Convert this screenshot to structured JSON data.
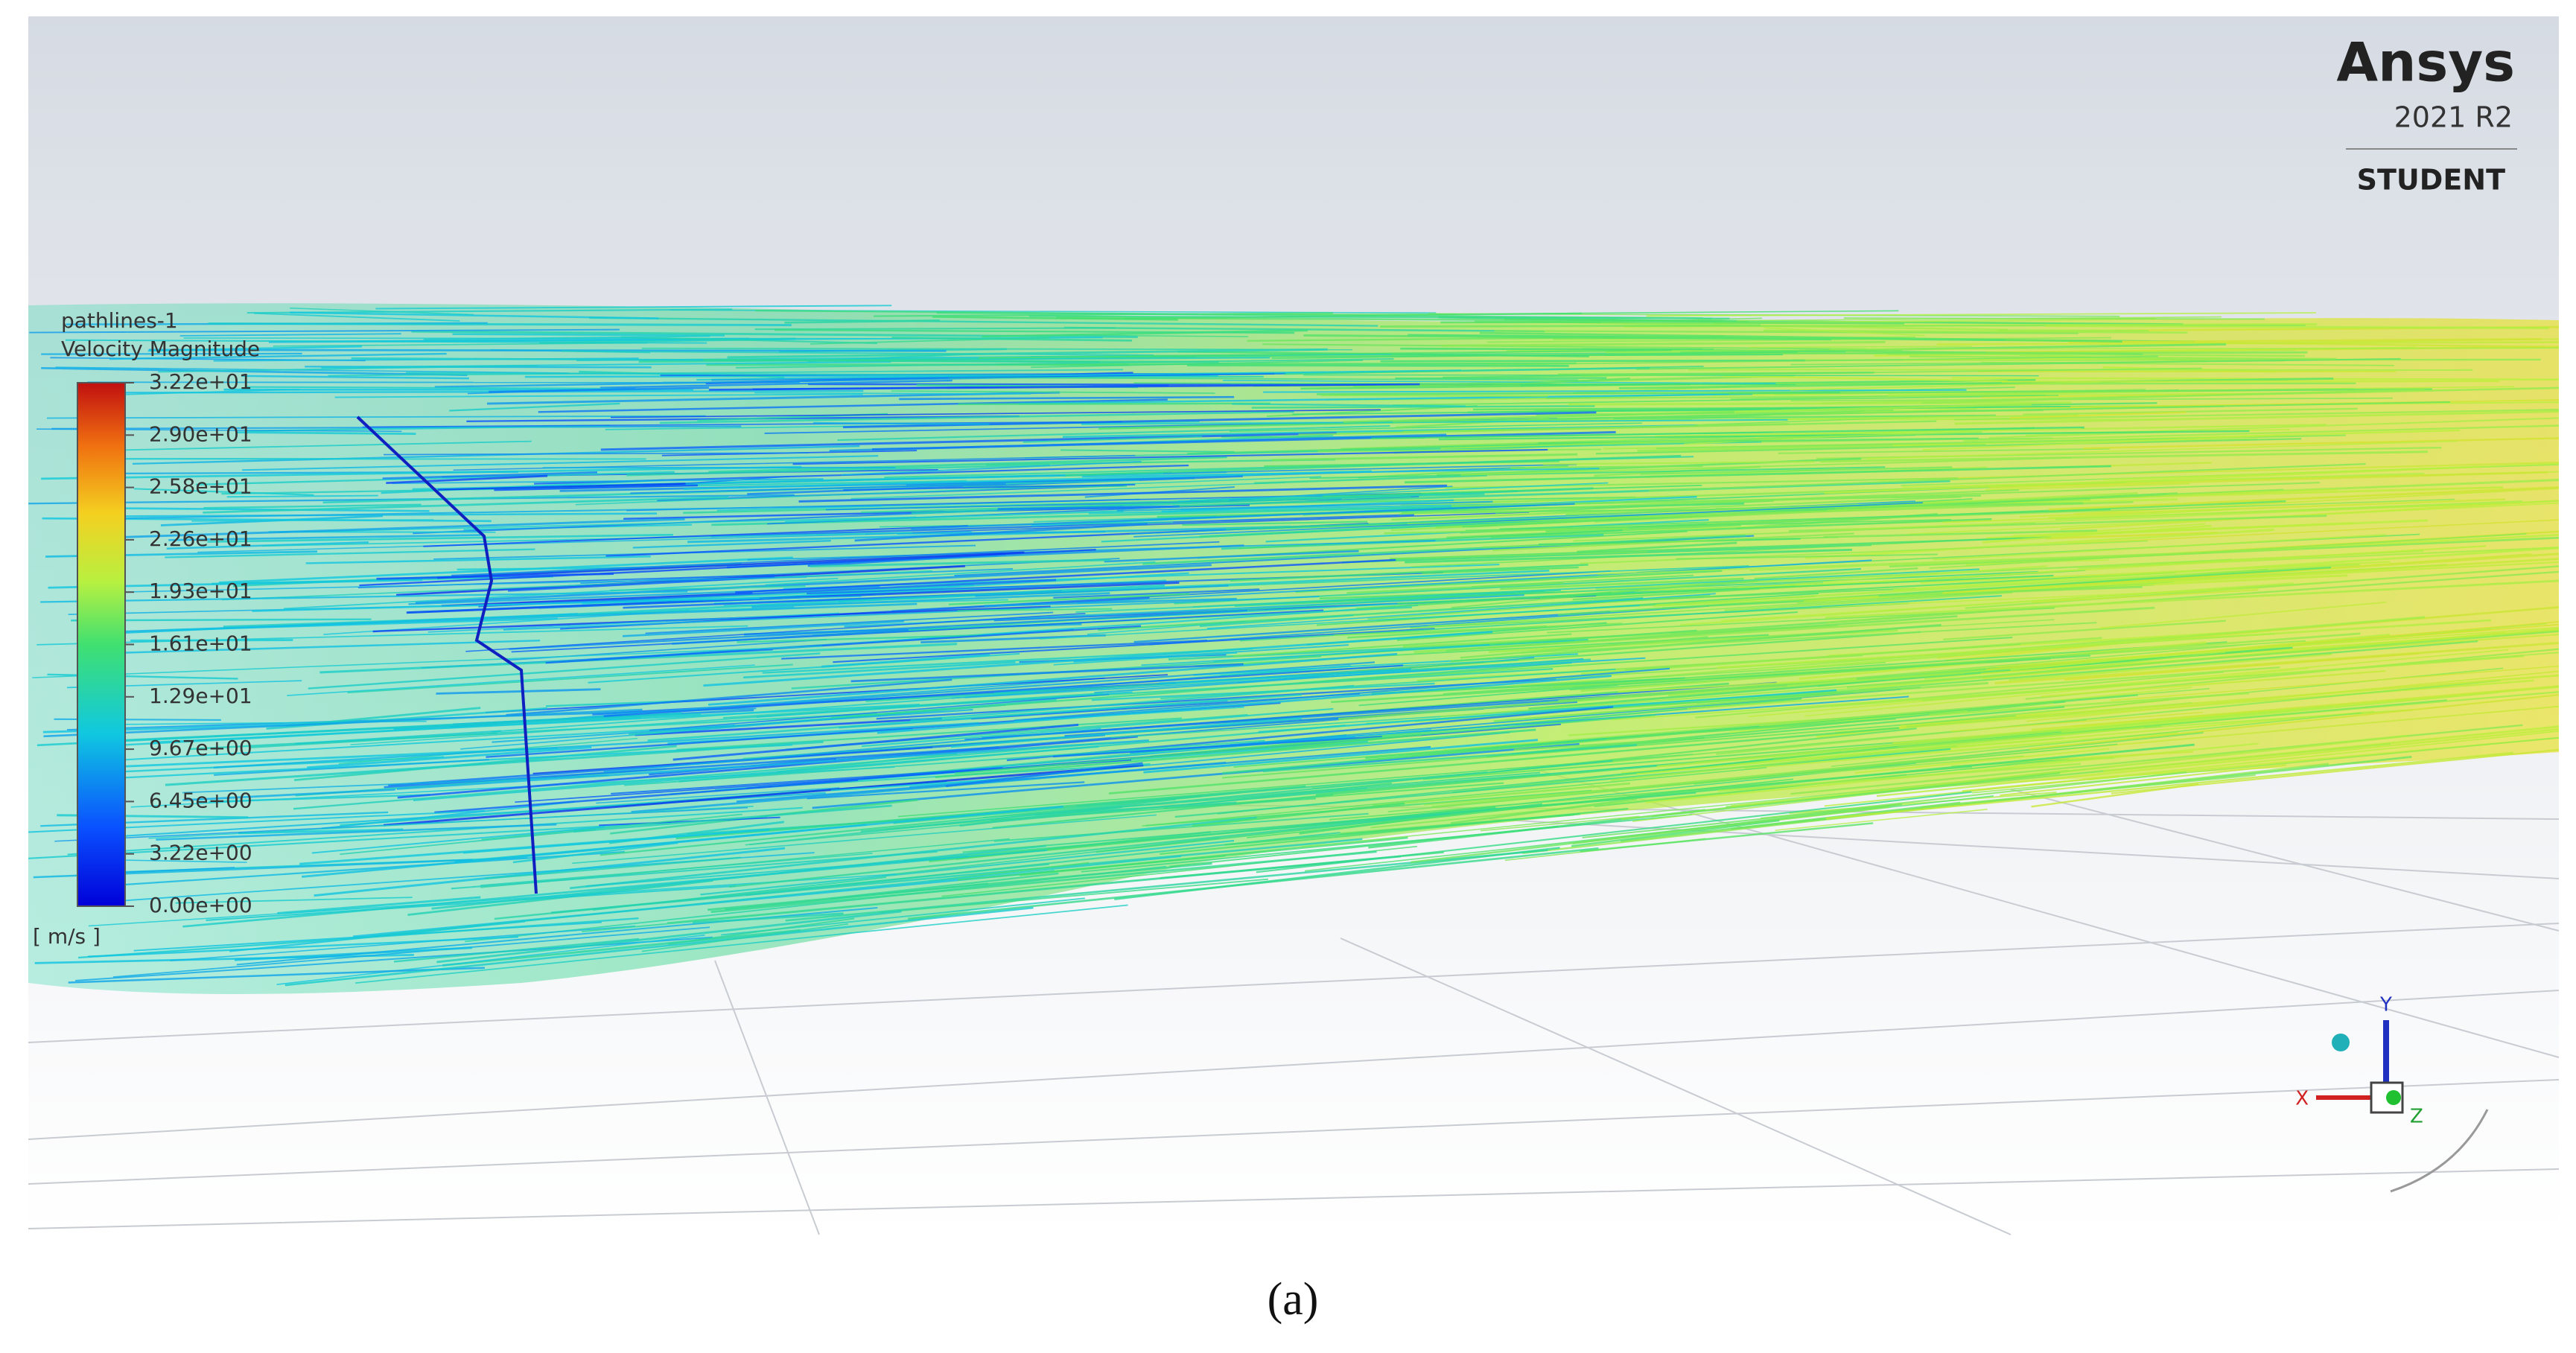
{
  "viewer": {
    "legend": {
      "name": "pathlines-1",
      "quantity": "Velocity Magnitude",
      "labels": [
        "3.22e+01",
        "2.90e+01",
        "2.58e+01",
        "2.26e+01",
        "1.93e+01",
        "1.61e+01",
        "1.29e+01",
        "9.67e+00",
        "6.45e+00",
        "3.22e+00",
        "0.00e+00"
      ],
      "unit": "[ m/s ]"
    },
    "brand": {
      "name": "Ansys",
      "version": "2021 R2",
      "edition": "STUDENT"
    },
    "triad": {
      "x": "X",
      "y": "Y",
      "z": "Z"
    }
  },
  "caption": "(a)"
}
